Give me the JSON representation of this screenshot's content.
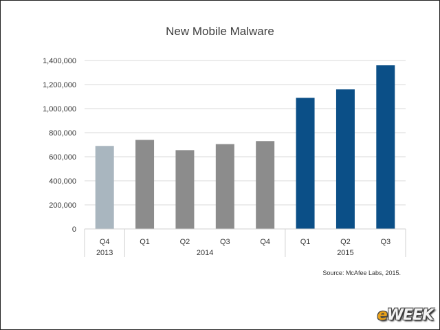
{
  "chart_data": {
    "type": "bar",
    "title": "New Mobile Malware",
    "categories": [
      "Q4",
      "Q1",
      "Q2",
      "Q3",
      "Q4",
      "Q1",
      "Q2",
      "Q3"
    ],
    "years": [
      {
        "label": "2013",
        "span": 1
      },
      {
        "label": "2014",
        "span": 4
      },
      {
        "label": "2015",
        "span": 3
      }
    ],
    "values": [
      690000,
      740000,
      655000,
      705000,
      730000,
      1090000,
      1160000,
      1360000
    ],
    "bar_colors": [
      "#a9b6bf",
      "#8c8c8c",
      "#8c8c8c",
      "#8c8c8c",
      "#8c8c8c",
      "#0b4f87",
      "#0b4f87",
      "#0b4f87"
    ],
    "ylim": [
      0,
      1400000
    ],
    "yticks": [
      "0",
      "200,000",
      "400,000",
      "600,000",
      "800,000",
      "1,000,000",
      "1,200,000",
      "1,400,000"
    ],
    "ytick_values": [
      0,
      200000,
      400000,
      600000,
      800000,
      1000000,
      1200000,
      1400000
    ],
    "grid": true,
    "source": "Source: McAfee Labs, 2015."
  },
  "logo": {
    "e": "e",
    "rest": "WEEK"
  }
}
